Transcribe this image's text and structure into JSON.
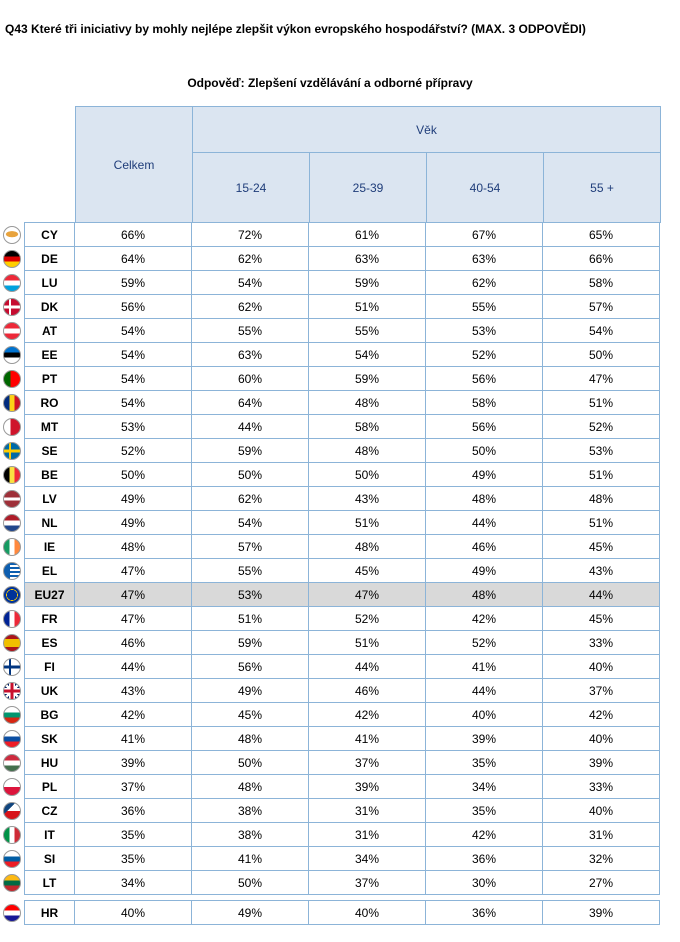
{
  "question": "Q43 Které tři iniciativy by mohly nejlépe zlepšit výkon evropského hospodářství? (MAX. 3 ODPOVĚDI)",
  "subtitle": "Odpověď: Zlepšení vzdělávání a odborné přípravy",
  "header": {
    "total": "Celkem",
    "age_group": "Věk",
    "ages": [
      "15-24",
      "25-39",
      "40-54",
      "55 +"
    ]
  },
  "rows": [
    {
      "code": "CY",
      "values": [
        "66%",
        "72%",
        "61%",
        "67%",
        "65%"
      ],
      "flag": "cyprus",
      "colors": [
        "#ffffff",
        "#e8a33d"
      ]
    },
    {
      "code": "DE",
      "values": [
        "64%",
        "62%",
        "63%",
        "63%",
        "66%"
      ],
      "flag": "hstripes",
      "colors": [
        "#000000",
        "#dd0000",
        "#ffce00"
      ]
    },
    {
      "code": "LU",
      "values": [
        "59%",
        "54%",
        "59%",
        "62%",
        "58%"
      ],
      "flag": "hstripes",
      "colors": [
        "#ed2939",
        "#ffffff",
        "#00a1de"
      ]
    },
    {
      "code": "DK",
      "values": [
        "56%",
        "62%",
        "51%",
        "55%",
        "57%"
      ],
      "flag": "nordic",
      "colors": [
        "#c60c30",
        "#ffffff"
      ]
    },
    {
      "code": "AT",
      "values": [
        "54%",
        "55%",
        "55%",
        "53%",
        "54%"
      ],
      "flag": "hstripes",
      "colors": [
        "#ed2939",
        "#ffffff",
        "#ed2939"
      ]
    },
    {
      "code": "EE",
      "values": [
        "54%",
        "63%",
        "54%",
        "52%",
        "50%"
      ],
      "flag": "hstripes",
      "colors": [
        "#0072ce",
        "#000000",
        "#ffffff"
      ]
    },
    {
      "code": "PT",
      "values": [
        "54%",
        "60%",
        "59%",
        "56%",
        "47%"
      ],
      "flag": "vsplit",
      "colors": [
        "#006600",
        "#ff0000"
      ]
    },
    {
      "code": "RO",
      "values": [
        "54%",
        "64%",
        "48%",
        "58%",
        "51%"
      ],
      "flag": "vstripes",
      "colors": [
        "#002b7f",
        "#fcd116",
        "#ce1126"
      ]
    },
    {
      "code": "MT",
      "values": [
        "53%",
        "44%",
        "58%",
        "56%",
        "52%"
      ],
      "flag": "vsplit",
      "colors": [
        "#ffffff",
        "#cf142b"
      ]
    },
    {
      "code": "SE",
      "values": [
        "52%",
        "59%",
        "48%",
        "50%",
        "53%"
      ],
      "flag": "nordic",
      "colors": [
        "#006aa7",
        "#fecc00"
      ]
    },
    {
      "code": "BE",
      "values": [
        "50%",
        "50%",
        "50%",
        "49%",
        "51%"
      ],
      "flag": "vstripes",
      "colors": [
        "#000000",
        "#fae042",
        "#ed2939"
      ]
    },
    {
      "code": "LV",
      "values": [
        "49%",
        "62%",
        "43%",
        "48%",
        "48%"
      ],
      "flag": "latvia",
      "colors": [
        "#9e3039",
        "#ffffff"
      ]
    },
    {
      "code": "NL",
      "values": [
        "49%",
        "54%",
        "51%",
        "44%",
        "51%"
      ],
      "flag": "hstripes",
      "colors": [
        "#ae1c28",
        "#ffffff",
        "#21468b"
      ]
    },
    {
      "code": "IE",
      "values": [
        "48%",
        "57%",
        "48%",
        "46%",
        "45%"
      ],
      "flag": "vstripes",
      "colors": [
        "#169b62",
        "#ffffff",
        "#ff883e"
      ]
    },
    {
      "code": "EL",
      "values": [
        "47%",
        "55%",
        "45%",
        "49%",
        "43%"
      ],
      "flag": "greece",
      "colors": [
        "#0d5eaf",
        "#ffffff"
      ]
    },
    {
      "code": "EU27",
      "values": [
        "47%",
        "53%",
        "47%",
        "48%",
        "44%"
      ],
      "flag": "eu",
      "colors": [
        "#003399",
        "#ffcc00"
      ]
    },
    {
      "code": "FR",
      "values": [
        "47%",
        "51%",
        "52%",
        "42%",
        "45%"
      ],
      "flag": "vstripes",
      "colors": [
        "#002395",
        "#ffffff",
        "#ed2939"
      ]
    },
    {
      "code": "ES",
      "values": [
        "46%",
        "59%",
        "51%",
        "52%",
        "33%"
      ],
      "flag": "spain",
      "colors": [
        "#aa151b",
        "#f1bf00"
      ]
    },
    {
      "code": "FI",
      "values": [
        "44%",
        "56%",
        "44%",
        "41%",
        "40%"
      ],
      "flag": "nordic",
      "colors": [
        "#ffffff",
        "#003580"
      ]
    },
    {
      "code": "UK",
      "values": [
        "43%",
        "49%",
        "46%",
        "44%",
        "37%"
      ],
      "flag": "uk",
      "colors": [
        "#012169",
        "#ffffff",
        "#c8102e"
      ]
    },
    {
      "code": "BG",
      "values": [
        "42%",
        "45%",
        "42%",
        "40%",
        "42%"
      ],
      "flag": "hstripes",
      "colors": [
        "#ffffff",
        "#00966e",
        "#d62612"
      ]
    },
    {
      "code": "SK",
      "values": [
        "41%",
        "48%",
        "41%",
        "39%",
        "40%"
      ],
      "flag": "hstripes",
      "colors": [
        "#ffffff",
        "#0b4ea2",
        "#ee1c25"
      ]
    },
    {
      "code": "HU",
      "values": [
        "39%",
        "50%",
        "37%",
        "35%",
        "39%"
      ],
      "flag": "hstripes",
      "colors": [
        "#cd2a3e",
        "#ffffff",
        "#436f4d"
      ]
    },
    {
      "code": "PL",
      "values": [
        "37%",
        "48%",
        "39%",
        "34%",
        "33%"
      ],
      "flag": "hsplit",
      "colors": [
        "#ffffff",
        "#dc143c"
      ]
    },
    {
      "code": "CZ",
      "values": [
        "36%",
        "38%",
        "31%",
        "35%",
        "40%"
      ],
      "flag": "czech",
      "colors": [
        "#ffffff",
        "#d7141a",
        "#11457e"
      ]
    },
    {
      "code": "IT",
      "values": [
        "35%",
        "38%",
        "31%",
        "42%",
        "31%"
      ],
      "flag": "vstripes",
      "colors": [
        "#009246",
        "#ffffff",
        "#ce2b37"
      ]
    },
    {
      "code": "SI",
      "values": [
        "35%",
        "41%",
        "34%",
        "36%",
        "32%"
      ],
      "flag": "hstripes",
      "colors": [
        "#ffffff",
        "#005da4",
        "#ed1c24"
      ]
    },
    {
      "code": "LT",
      "values": [
        "34%",
        "50%",
        "37%",
        "30%",
        "27%"
      ],
      "flag": "hstripes",
      "colors": [
        "#fdb913",
        "#006a44",
        "#c1272d"
      ]
    }
  ],
  "hr_row": {
    "code": "HR",
    "values": [
      "40%",
      "49%",
      "40%",
      "36%",
      "39%"
    ],
    "flag": "hstripes",
    "colors": [
      "#ff0000",
      "#ffffff",
      "#171796"
    ]
  }
}
